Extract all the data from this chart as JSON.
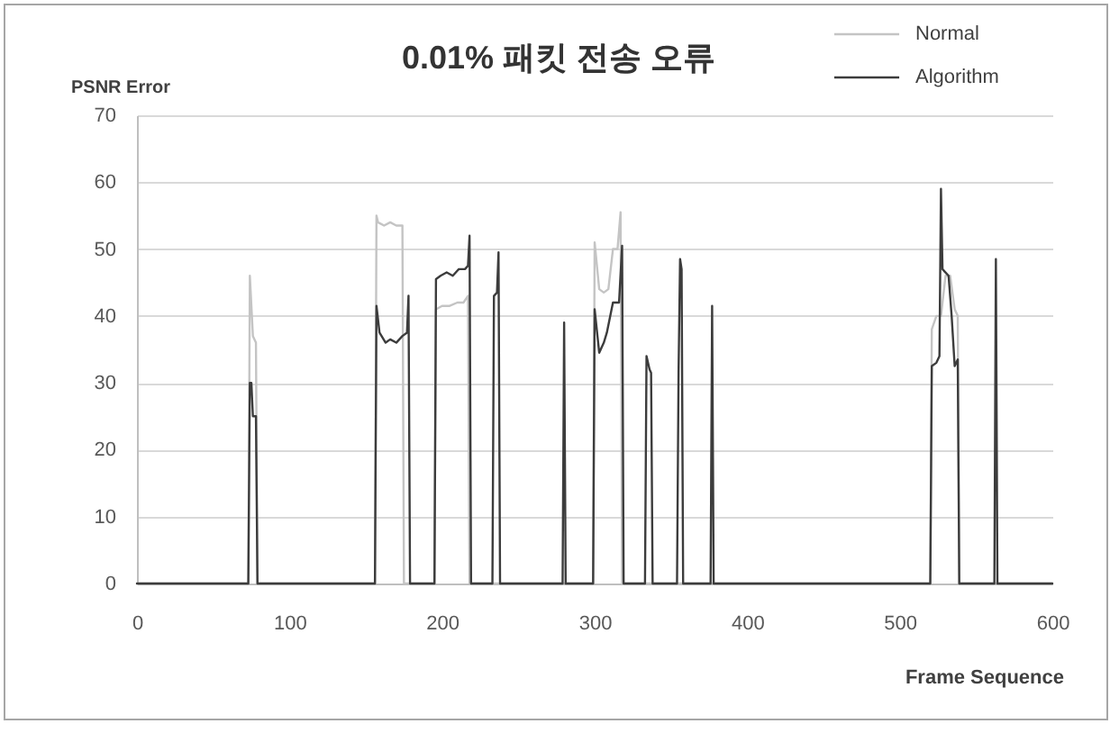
{
  "chart_data": {
    "type": "line",
    "title": "0.01% 패킷 전송 오류",
    "xlabel": "Frame Sequence",
    "ylabel": "PSNR Error",
    "xlim": [
      0,
      600
    ],
    "xticks": [
      0,
      100,
      200,
      300,
      400,
      500,
      600
    ],
    "ylim": [
      0,
      70
    ],
    "yticks": [
      0,
      10,
      20,
      30,
      40,
      50,
      60,
      70
    ],
    "grid": "y",
    "legend": "top right",
    "series": [
      {
        "name": "Normal",
        "color": "#c4c4c4",
        "x": [
          0,
          73,
          74,
          76,
          78,
          79,
          156,
          157,
          158,
          162,
          166,
          170,
          174,
          175,
          195,
          196,
          200,
          205,
          210,
          214,
          217,
          218,
          299,
          300,
          303,
          306,
          309,
          312,
          315,
          317,
          318,
          520,
          521,
          524,
          527,
          530,
          533,
          536,
          538,
          539,
          600
        ],
        "values": [
          0,
          0,
          46,
          37,
          36,
          0,
          0,
          55,
          54,
          53.5,
          54,
          53.5,
          53.5,
          0,
          0,
          41,
          41.5,
          41.5,
          42,
          42,
          43,
          0,
          0,
          51,
          44,
          43.5,
          44,
          50,
          50,
          55.5,
          0,
          0,
          38,
          40,
          40,
          46,
          46,
          41,
          40,
          0,
          0
        ]
      },
      {
        "name": "Algorithm",
        "color": "#3c3c3c",
        "x": [
          0,
          73,
          74,
          75,
          76,
          78,
          79,
          156,
          157,
          159,
          163,
          166,
          170,
          174,
          177,
          178,
          179,
          195,
          196,
          199,
          203,
          207,
          211,
          215,
          217,
          218,
          219,
          233,
          234,
          236,
          237,
          238,
          279,
          280,
          281,
          299,
          300,
          303,
          306,
          308,
          312,
          316,
          318,
          319,
          333,
          334,
          336,
          337,
          338,
          354,
          355,
          356,
          357,
          358,
          376,
          377,
          378,
          520,
          521,
          524,
          526,
          527,
          528,
          530,
          532,
          534,
          536,
          538,
          539,
          562,
          563,
          564,
          600
        ],
        "values": [
          0,
          0,
          30,
          30,
          25,
          25,
          0,
          0,
          41.5,
          37.5,
          36,
          36.5,
          36,
          37,
          37.5,
          43,
          0,
          0,
          45.5,
          46,
          46.5,
          46,
          47,
          47,
          47.5,
          52,
          0,
          0,
          43,
          43.5,
          49.5,
          0,
          0,
          39,
          0,
          0,
          41,
          34.5,
          36,
          37.5,
          42,
          42,
          50.5,
          0,
          0,
          34,
          32,
          31.5,
          0,
          0,
          31.5,
          48.5,
          47,
          0,
          0,
          41.5,
          0,
          0,
          32.5,
          33,
          34,
          59,
          47,
          46.5,
          46,
          40,
          32.5,
          33.5,
          0,
          0,
          48.5,
          0,
          0
        ]
      }
    ]
  }
}
